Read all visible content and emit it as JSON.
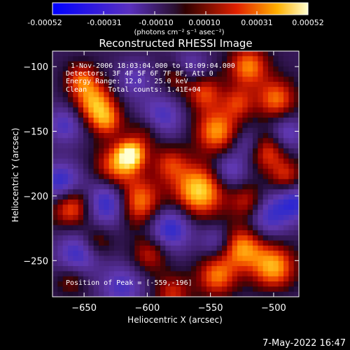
{
  "colorbar": {
    "ticks": [
      "-0.00052",
      "-0.00031",
      "-0.00010",
      "0.00010",
      "0.00031",
      "0.00052"
    ],
    "unit": "(photons cm⁻² s⁻¹ asec⁻²)",
    "range": [
      -0.00052,
      0.00052
    ]
  },
  "title": "Reconstructed RHESSI Image",
  "annotations": {
    "time": "1-Nov-2006 18:03:04.000 to 18:09:04.000",
    "detectors": "Detectors: 3F 4F 5F 6F 7F 8F, Att 0",
    "energy": "Energy Range: 12.0 - 25.0 keV",
    "clean": "Clean     Total counts: 1.41E+04",
    "peak": "Position of Peak = [-559,-196]"
  },
  "footer": {
    "date": "7-May-2022 16:47"
  },
  "colors": {
    "background": "#000000",
    "text": "#ffffff"
  },
  "chart_data": {
    "type": "heatmap",
    "title": "Reconstructed RHESSI Image",
    "xlabel": "Heliocentric X (arcsec)",
    "ylabel": "Heliocentric Y (arcsec)",
    "xlim": [
      -675,
      -480
    ],
    "ylim": [
      -278,
      -88
    ],
    "xticks": [
      -650,
      -600,
      -550,
      -500
    ],
    "yticks": [
      -100,
      -150,
      -200,
      -250
    ],
    "xtick_labels": [
      "−650",
      "−600",
      "−550",
      "−500"
    ],
    "ytick_labels": [
      "−100",
      "−150",
      "−200",
      "−250"
    ],
    "peak": [
      -559,
      -196
    ],
    "sources": [
      [
        -559,
        -196,
        1.0,
        14
      ],
      [
        -608,
        -205,
        0.85,
        13
      ],
      [
        -625,
        -178,
        0.7,
        12
      ],
      [
        -660,
        -208,
        0.75,
        11
      ],
      [
        -642,
        -128,
        0.8,
        11
      ],
      [
        -652,
        -110,
        0.6,
        9
      ],
      [
        -545,
        -150,
        0.8,
        12
      ],
      [
        -555,
        -120,
        0.6,
        10
      ],
      [
        -575,
        -108,
        0.5,
        9
      ],
      [
        -520,
        -100,
        0.75,
        11
      ],
      [
        -498,
        -125,
        0.7,
        11
      ],
      [
        -505,
        -165,
        0.65,
        11
      ],
      [
        -500,
        -255,
        0.85,
        12
      ],
      [
        -525,
        -240,
        0.8,
        12
      ],
      [
        -545,
        -262,
        0.7,
        11
      ],
      [
        -600,
        -150,
        0.45,
        10
      ],
      [
        -598,
        -245,
        0.5,
        10
      ],
      [
        -640,
        -235,
        0.4,
        9
      ],
      [
        -660,
        -265,
        0.35,
        9
      ],
      [
        -580,
        -275,
        0.5,
        10
      ],
      [
        -520,
        -205,
        0.55,
        10
      ],
      [
        -582,
        -175,
        0.5,
        10
      ],
      [
        -613,
        -168,
        0.95,
        8
      ],
      [
        -490,
        -185,
        0.5,
        9
      ],
      [
        -528,
        -128,
        0.5,
        9
      ],
      [
        -632,
        -142,
        0.6,
        9
      ],
      [
        -630,
        -205,
        -0.8,
        13
      ],
      [
        -668,
        -190,
        -0.7,
        11
      ],
      [
        -655,
        -245,
        -0.6,
        12
      ],
      [
        -582,
        -225,
        -0.7,
        12
      ],
      [
        -590,
        -140,
        -0.6,
        12
      ],
      [
        -567,
        -102,
        -0.5,
        10
      ],
      [
        -505,
        -215,
        -0.6,
        12
      ],
      [
        -495,
        -295,
        -0.4,
        10
      ],
      [
        -535,
        -180,
        -0.5,
        10
      ],
      [
        -620,
        -270,
        -0.5,
        12
      ],
      [
        -665,
        -145,
        -0.5,
        10
      ],
      [
        -520,
        -160,
        -0.4,
        9
      ],
      [
        -545,
        -235,
        -0.4,
        9
      ],
      [
        -610,
        -110,
        -0.4,
        10
      ],
      [
        -483,
        -205,
        -0.6,
        10
      ],
      [
        -490,
        -152,
        -0.5,
        10
      ]
    ]
  }
}
